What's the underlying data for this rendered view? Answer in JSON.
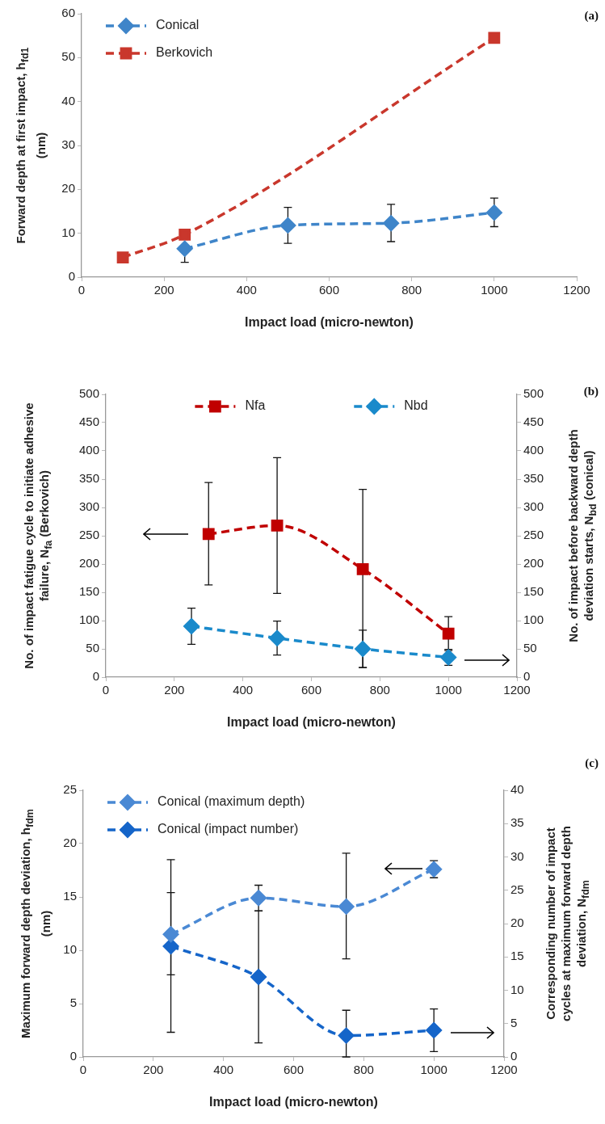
{
  "chart_data": [
    {
      "type": "line",
      "annotations": [
        "(a)"
      ],
      "xlabel": "Impact load (micro-newton)",
      "ylabel": "Forward depth at first impact, h$_{fd1}$ (nm)",
      "xlim": [
        0,
        1200
      ],
      "xticks": [
        0,
        200,
        400,
        600,
        800,
        1000,
        1200
      ],
      "ylim": [
        0,
        60
      ],
      "yticks": [
        0,
        10,
        20,
        30,
        40,
        50,
        60
      ],
      "legend": "top left",
      "line_style": "dashed",
      "series": [
        {
          "name": "Conical",
          "color": "#3f85c9",
          "marker": "diamond",
          "x": [
            250,
            500,
            750,
            1000
          ],
          "values": [
            6.5,
            11.8,
            12.3,
            14.7
          ],
          "errors": [
            [
              3.4,
              6.5
            ],
            [
              7.7,
              15.9
            ],
            [
              8.1,
              16.6
            ],
            [
              11.5,
              18
            ]
          ]
        },
        {
          "name": "Berkovich",
          "color": "#c9372c",
          "marker": "square",
          "x": [
            100,
            250,
            1000
          ],
          "values": [
            4.5,
            9.7,
            54.5
          ]
        }
      ]
    },
    {
      "type": "line",
      "annotations": [
        "(b)"
      ],
      "xlabel": "Impact load (micro-newton)",
      "ylabel": "No. of impact fatigue cycle to initiate adhesive failure, N$_{fa}$ (Berkovich)",
      "y2label": "No. of impact before backward depth deviation starts, N$_{bd}$ (conical)",
      "xlim": [
        0,
        1200
      ],
      "xticks": [
        0,
        200,
        400,
        600,
        800,
        1000,
        1200
      ],
      "ylim": [
        0,
        500
      ],
      "yticks": [
        0,
        50,
        100,
        150,
        200,
        250,
        300,
        350,
        400,
        450,
        500
      ],
      "y2lim": [
        0,
        500
      ],
      "y2ticks": [
        0,
        50,
        100,
        150,
        200,
        250,
        300,
        350,
        400,
        450,
        500
      ],
      "legend": "top",
      "line_style": "dashed",
      "series": [
        {
          "name": "Nfa",
          "color": "#c00000",
          "marker": "square",
          "x": [
            300,
            500,
            750,
            1000
          ],
          "values": [
            253,
            268,
            191,
            77
          ],
          "errors": [
            [
              163,
              344
            ],
            [
              148,
              388
            ],
            [
              17,
              332
            ],
            [
              47,
              107
            ]
          ]
        },
        {
          "name": "Nbd",
          "color": "#1a8acb",
          "marker": "diamond",
          "axis": "y2",
          "x": [
            250,
            500,
            750,
            1000
          ],
          "values": [
            90,
            69,
            50,
            35
          ],
          "errors": [
            [
              58,
              122
            ],
            [
              39,
              99
            ],
            [
              17,
              83
            ],
            [
              21,
              49
            ]
          ]
        }
      ]
    },
    {
      "type": "line",
      "annotations": [
        "(c)"
      ],
      "xlabel": "Impact load (micro-newton)",
      "ylabel": "Maximum forward depth deviation, h$_{fdm}$ (nm)",
      "y2label": "Corresponding number of impact cycles at maximum forward depth deviation, N$_{fdm}$",
      "xlim": [
        0,
        1200
      ],
      "xticks": [
        0,
        200,
        400,
        600,
        800,
        1000,
        1200
      ],
      "ylim": [
        0,
        25
      ],
      "yticks": [
        0,
        5,
        10,
        15,
        20,
        25
      ],
      "y2lim": [
        0,
        40
      ],
      "y2ticks": [
        0,
        5,
        10,
        15,
        20,
        25,
        30,
        35,
        40
      ],
      "legend": "top left",
      "line_style": "dashed",
      "series": [
        {
          "name": "Conical (maximum depth)",
          "color": "#4a89d4",
          "marker": "diamond",
          "x": [
            250,
            500,
            750,
            1000
          ],
          "values": [
            11.5,
            14.9,
            14.1,
            17.6
          ],
          "errors": [
            [
              7.7,
              15.4
            ],
            [
              13.7,
              16.1
            ],
            [
              9.2,
              19.1
            ],
            [
              16.8,
              18.4
            ]
          ]
        },
        {
          "name": "Conical (impact number)",
          "color": "#1565c9",
          "marker": "diamond",
          "axis": "y2",
          "x": [
            250,
            500,
            750,
            1000
          ],
          "values": [
            16.6,
            12,
            3.2,
            4
          ],
          "errors": [
            [
              3.7,
              29.6
            ],
            [
              2.1,
              21.9
            ],
            [
              0,
              7
            ],
            [
              0.8,
              7.2
            ]
          ]
        }
      ]
    }
  ]
}
